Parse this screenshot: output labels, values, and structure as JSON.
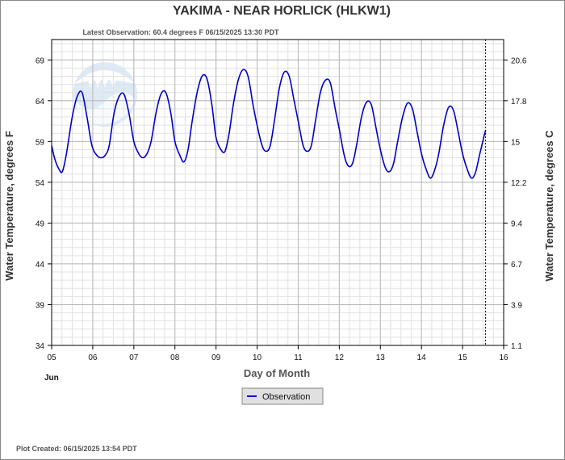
{
  "chart_data": {
    "type": "line",
    "title": "YAKIMA - NEAR HORLICK  (HLKW1)",
    "subtitle": "Latest Observation: 60.4 degrees F 06/15/2025 13:30 PDT",
    "xlabel": "Day of Month",
    "month_label": "Jun",
    "ylabel_left": "Water Temperature, degrees F",
    "ylabel_right": "Water Temperature, degrees C",
    "footer": "Plot Created: 06/15/2025 13:54 PDT",
    "xlim": [
      5,
      16
    ],
    "ylim": [
      34,
      71.5
    ],
    "x_ticks": [
      {
        "value": 5,
        "label": "05"
      },
      {
        "value": 6,
        "label": "06"
      },
      {
        "value": 7,
        "label": "07"
      },
      {
        "value": 8,
        "label": "08"
      },
      {
        "value": 9,
        "label": "09"
      },
      {
        "value": 10,
        "label": "10"
      },
      {
        "value": 11,
        "label": "11"
      },
      {
        "value": 12,
        "label": "12"
      },
      {
        "value": 13,
        "label": "13"
      },
      {
        "value": 14,
        "label": "14"
      },
      {
        "value": 15,
        "label": "15"
      },
      {
        "value": 16,
        "label": "16"
      }
    ],
    "y_ticks_left": [
      {
        "value": 34,
        "label": "34"
      },
      {
        "value": 39,
        "label": "39"
      },
      {
        "value": 44,
        "label": "44"
      },
      {
        "value": 49,
        "label": "49"
      },
      {
        "value": 54,
        "label": "54"
      },
      {
        "value": 59,
        "label": "59"
      },
      {
        "value": 64,
        "label": "64"
      },
      {
        "value": 69,
        "label": "69"
      }
    ],
    "y_ticks_right": [
      {
        "value": 34,
        "label": "1.1"
      },
      {
        "value": 39,
        "label": "3.9"
      },
      {
        "value": 44,
        "label": "6.7"
      },
      {
        "value": 49,
        "label": "9.4"
      },
      {
        "value": 54,
        "label": "12.2"
      },
      {
        "value": 59,
        "label": "15"
      },
      {
        "value": 64,
        "label": "17.8"
      },
      {
        "value": 69,
        "label": "20.6"
      }
    ],
    "latest_observation_x": 15.56,
    "grid": true,
    "legend_position": "bottom-center",
    "series": [
      {
        "name": "Observation",
        "color": "#0000cc",
        "points": [
          [
            5.0,
            58.5
          ],
          [
            5.08,
            56.8
          ],
          [
            5.18,
            55.6
          ],
          [
            5.26,
            55.3
          ],
          [
            5.36,
            57.5
          ],
          [
            5.5,
            62.0
          ],
          [
            5.62,
            64.5
          ],
          [
            5.74,
            65.0
          ],
          [
            5.86,
            62.0
          ],
          [
            5.98,
            58.5
          ],
          [
            6.1,
            57.3
          ],
          [
            6.2,
            57.0
          ],
          [
            6.3,
            57.3
          ],
          [
            6.4,
            58.5
          ],
          [
            6.52,
            62.5
          ],
          [
            6.64,
            64.5
          ],
          [
            6.76,
            64.8
          ],
          [
            6.88,
            62.5
          ],
          [
            7.0,
            59.0
          ],
          [
            7.12,
            57.5
          ],
          [
            7.22,
            57.0
          ],
          [
            7.32,
            57.5
          ],
          [
            7.42,
            59.0
          ],
          [
            7.54,
            62.5
          ],
          [
            7.66,
            64.8
          ],
          [
            7.78,
            65.0
          ],
          [
            7.9,
            62.5
          ],
          [
            8.0,
            59.0
          ],
          [
            8.12,
            57.3
          ],
          [
            8.22,
            56.5
          ],
          [
            8.32,
            58.0
          ],
          [
            8.42,
            61.5
          ],
          [
            8.54,
            65.0
          ],
          [
            8.66,
            67.0
          ],
          [
            8.78,
            66.7
          ],
          [
            8.9,
            63.5
          ],
          [
            9.0,
            59.5
          ],
          [
            9.12,
            58.0
          ],
          [
            9.22,
            57.8
          ],
          [
            9.32,
            60.0
          ],
          [
            9.42,
            63.5
          ],
          [
            9.54,
            66.5
          ],
          [
            9.66,
            67.8
          ],
          [
            9.78,
            67.0
          ],
          [
            9.9,
            63.5
          ],
          [
            10.0,
            61.0
          ],
          [
            10.12,
            58.5
          ],
          [
            10.22,
            57.8
          ],
          [
            10.32,
            58.5
          ],
          [
            10.42,
            61.5
          ],
          [
            10.54,
            65.5
          ],
          [
            10.66,
            67.5
          ],
          [
            10.78,
            67.0
          ],
          [
            10.9,
            64.0
          ],
          [
            11.0,
            61.5
          ],
          [
            11.12,
            58.5
          ],
          [
            11.22,
            57.8
          ],
          [
            11.32,
            58.5
          ],
          [
            11.42,
            61.5
          ],
          [
            11.54,
            65.0
          ],
          [
            11.66,
            66.5
          ],
          [
            11.78,
            66.2
          ],
          [
            11.9,
            63.0
          ],
          [
            12.0,
            60.5
          ],
          [
            12.12,
            57.3
          ],
          [
            12.22,
            56.0
          ],
          [
            12.32,
            56.3
          ],
          [
            12.42,
            58.5
          ],
          [
            12.54,
            62.0
          ],
          [
            12.66,
            63.8
          ],
          [
            12.78,
            63.5
          ],
          [
            12.9,
            60.5
          ],
          [
            13.0,
            58.0
          ],
          [
            13.12,
            55.8
          ],
          [
            13.22,
            55.3
          ],
          [
            13.32,
            56.3
          ],
          [
            13.42,
            59.0
          ],
          [
            13.54,
            62.0
          ],
          [
            13.66,
            63.7
          ],
          [
            13.78,
            63.0
          ],
          [
            13.9,
            60.0
          ],
          [
            14.0,
            57.5
          ],
          [
            14.12,
            55.5
          ],
          [
            14.22,
            54.5
          ],
          [
            14.32,
            55.5
          ],
          [
            14.42,
            57.5
          ],
          [
            14.54,
            61.0
          ],
          [
            14.66,
            63.2
          ],
          [
            14.78,
            62.8
          ],
          [
            14.9,
            60.0
          ],
          [
            15.0,
            57.5
          ],
          [
            15.12,
            55.5
          ],
          [
            15.22,
            54.5
          ],
          [
            15.32,
            55.3
          ],
          [
            15.42,
            57.5
          ],
          [
            15.56,
            60.4
          ]
        ]
      }
    ]
  },
  "legend": {
    "label": "Observation"
  }
}
